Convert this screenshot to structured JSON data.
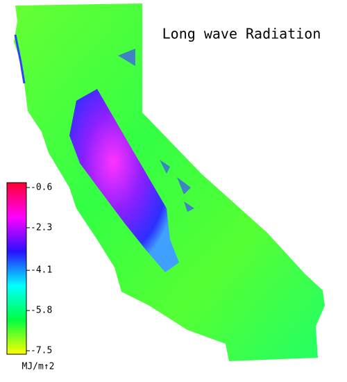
{
  "title": "Long wave Radiation",
  "colorbar": {
    "ticks": [
      -0.6,
      -2.3,
      -4.1,
      -5.8,
      -7.5
    ],
    "colors": [
      "#ff0030",
      "#ff00ff",
      "#2a10ff",
      "#00ffff",
      "#00ff40",
      "#ffff00"
    ],
    "unit": "MJ/m↑2"
  }
}
